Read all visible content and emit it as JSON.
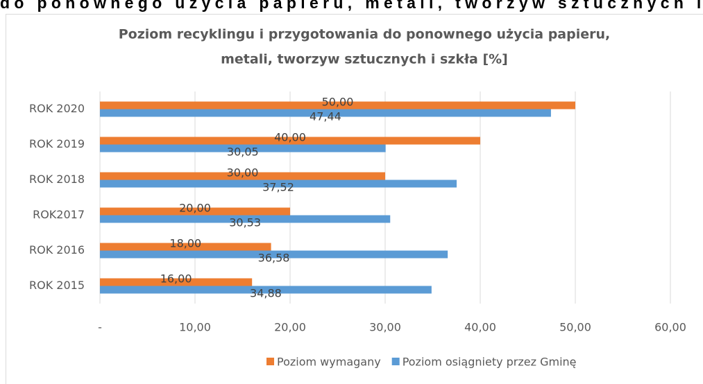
{
  "page_text": "do ponownego użycia papieru, metali, tworzyw sztucznych i sz",
  "chart_data": {
    "type": "hbar",
    "title": [
      "Poziom recyklingu i przygotowania do ponownego użycia papieru,",
      "metali, tworzyw sztucznych i szkła [%]"
    ],
    "categories": [
      "ROK 2020",
      "ROK 2019",
      "ROK 2018",
      "ROK2017",
      "ROK 2016",
      "ROK 2015"
    ],
    "series": [
      {
        "name": "Poziom wymagany",
        "color": "#ed7d31",
        "values": [
          50,
          40,
          30,
          20,
          18,
          16
        ],
        "value_labels": [
          "50,00",
          "40,00",
          "30,00",
          "20,00",
          "18,00",
          "16,00"
        ]
      },
      {
        "name": "Poziom osiągniety przez Gminę",
        "color": "#5b9bd5",
        "values": [
          47.44,
          30.05,
          37.52,
          30.53,
          36.58,
          34.88
        ],
        "value_labels": [
          "47,44",
          "30,05",
          "37,52",
          "30,53",
          "36,58",
          "34,88"
        ]
      }
    ],
    "xlim": [
      0,
      60
    ],
    "xticks": [
      {
        "value": 0,
        "label": "-"
      },
      {
        "value": 10,
        "label": "10,00"
      },
      {
        "value": 20,
        "label": "20,00"
      },
      {
        "value": 30,
        "label": "30,00"
      },
      {
        "value": 40,
        "label": "40,00"
      },
      {
        "value": 50,
        "label": "50,00"
      },
      {
        "value": 60,
        "label": "60,00"
      }
    ],
    "grid": true,
    "legend": "bottom"
  }
}
